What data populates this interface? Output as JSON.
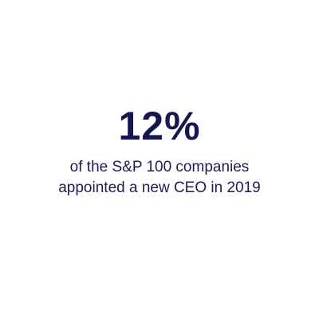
{
  "stat": {
    "value": "12%",
    "caption": [
      "of the S&P 100 companies",
      "appointed a new CEO in 2019"
    ]
  }
}
